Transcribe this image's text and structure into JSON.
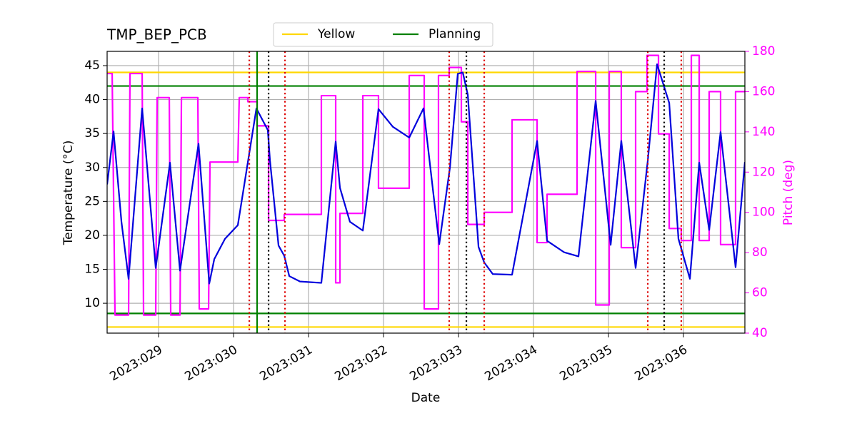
{
  "chart_data": {
    "type": "line",
    "title": "TMP_BEP_PCB",
    "xlabel": "Date",
    "ylabel": "Temperature (°C)",
    "y2label": "Pitch (deg)",
    "y2color": "#ff00ff",
    "grid": true,
    "legend": "top",
    "xlim": [
      28.314,
      36.819
    ],
    "xticks": [
      {
        "value": 29,
        "label": "2023:029"
      },
      {
        "value": 30,
        "label": "2023:030"
      },
      {
        "value": 31,
        "label": "2023:031"
      },
      {
        "value": 32,
        "label": "2023:032"
      },
      {
        "value": 33,
        "label": "2023:033"
      },
      {
        "value": 34,
        "label": "2023:034"
      },
      {
        "value": 35,
        "label": "2023:035"
      },
      {
        "value": 36,
        "label": "2023:036"
      }
    ],
    "ylim": [
      5.6,
      47.1
    ],
    "yticks": [
      10,
      15,
      20,
      25,
      30,
      35,
      40,
      45
    ],
    "y2lim": [
      40,
      180
    ],
    "y2ticks": [
      40,
      60,
      80,
      100,
      120,
      140,
      160,
      180
    ],
    "limit_lines": [
      {
        "name": "Yellow",
        "color": "#ffd700",
        "values": [
          44,
          6.5
        ]
      },
      {
        "name": "Planning",
        "color": "#008000",
        "values": [
          42,
          8.5
        ]
      }
    ],
    "vlines": [
      {
        "x": 30.314,
        "color": "#008000",
        "style": "solid"
      },
      {
        "x": 30.21,
        "color": "#dd0000",
        "style": "dotted"
      },
      {
        "x": 30.686,
        "color": "#dd0000",
        "style": "dotted"
      },
      {
        "x": 32.876,
        "color": "#dd0000",
        "style": "dotted"
      },
      {
        "x": 33.343,
        "color": "#dd0000",
        "style": "dotted"
      },
      {
        "x": 35.524,
        "color": "#dd0000",
        "style": "dotted"
      },
      {
        "x": 35.971,
        "color": "#dd0000",
        "style": "dotted"
      },
      {
        "x": 30.467,
        "color": "#000000",
        "style": "dotted"
      },
      {
        "x": 33.105,
        "color": "#000000",
        "style": "dotted"
      },
      {
        "x": 35.743,
        "color": "#000000",
        "style": "dotted"
      }
    ],
    "series": [
      {
        "color": "#ff00ff",
        "axis": "y2",
        "x": [
          28.314,
          28.381,
          28.419,
          28.6,
          28.619,
          28.781,
          28.8,
          28.962,
          28.981,
          29.143,
          29.162,
          29.286,
          29.305,
          29.524,
          29.543,
          29.667,
          29.686,
          30.057,
          30.076,
          30.19,
          30.19,
          30.314,
          30.314,
          30.467,
          30.467,
          30.676,
          30.676,
          31.171,
          31.171,
          31.362,
          31.362,
          31.419,
          31.419,
          31.724,
          31.724,
          31.933,
          31.933,
          32.343,
          32.343,
          32.543,
          32.543,
          32.733,
          32.733,
          32.876,
          32.876,
          33.038,
          33.038,
          33.124,
          33.124,
          33.343,
          33.343,
          33.714,
          33.714,
          34.048,
          34.048,
          34.181,
          34.181,
          34.581,
          34.581,
          34.829,
          34.829,
          35.01,
          35.01,
          35.171,
          35.171,
          35.362,
          35.362,
          35.514,
          35.514,
          35.667,
          35.667,
          35.81,
          35.81,
          35.971,
          35.971,
          36.105,
          36.105,
          36.21,
          36.21,
          36.343,
          36.343,
          36.495,
          36.495,
          36.695,
          36.695,
          36.819
        ],
        "values": [
          169,
          169,
          49,
          49,
          169,
          169,
          49,
          49,
          157,
          157,
          49,
          49,
          157,
          157,
          52,
          52,
          125,
          125,
          157,
          157,
          155,
          155,
          143,
          143,
          96,
          96,
          99,
          99,
          158,
          158,
          65,
          65,
          99.5,
          99.5,
          158,
          158,
          112,
          112,
          168,
          168,
          52,
          52,
          168,
          168,
          172,
          172,
          145,
          145,
          94,
          94,
          100,
          100,
          146,
          146,
          85,
          85,
          109,
          109,
          170,
          170,
          54,
          54,
          170,
          170,
          82.5,
          82.5,
          160,
          160,
          178,
          178,
          139,
          139,
          92,
          92,
          86,
          86,
          178,
          178,
          86,
          86,
          160,
          160,
          84,
          84,
          160,
          160
        ]
      },
      {
        "color": "#0000dd",
        "axis": "y",
        "x": [
          28.314,
          28.4,
          28.505,
          28.6,
          28.781,
          28.962,
          29.152,
          29.286,
          29.533,
          29.676,
          29.743,
          29.886,
          30.057,
          30.305,
          30.457,
          30.486,
          30.6,
          30.676,
          30.743,
          30.886,
          31.171,
          31.362,
          31.419,
          31.552,
          31.724,
          31.933,
          32.124,
          32.343,
          32.533,
          32.743,
          32.886,
          32.99,
          33.057,
          33.124,
          33.267,
          33.343,
          33.457,
          33.714,
          34.048,
          34.181,
          34.41,
          34.6,
          34.829,
          35.029,
          35.171,
          35.362,
          35.524,
          35.648,
          35.81,
          35.933,
          36.086,
          36.21,
          36.343,
          36.495,
          36.695,
          36.819
        ],
        "values": [
          27.5,
          35.3,
          22,
          13.6,
          38.7,
          15.2,
          30.7,
          14.8,
          33.5,
          12.9,
          16.5,
          19.5,
          21.5,
          38.7,
          35.5,
          31,
          18.5,
          17,
          14,
          13.2,
          13,
          33.8,
          27,
          22,
          20.7,
          38.6,
          36,
          34.4,
          38.7,
          18.7,
          30,
          43.8,
          44,
          40.7,
          18.3,
          16,
          14.3,
          14.2,
          33.9,
          19.2,
          17.5,
          16.9,
          39.8,
          18.6,
          33.9,
          15.2,
          31,
          45.2,
          39.5,
          19.5,
          13.6,
          30.7,
          20.8,
          35.2,
          15.3,
          30.8
        ]
      }
    ]
  }
}
